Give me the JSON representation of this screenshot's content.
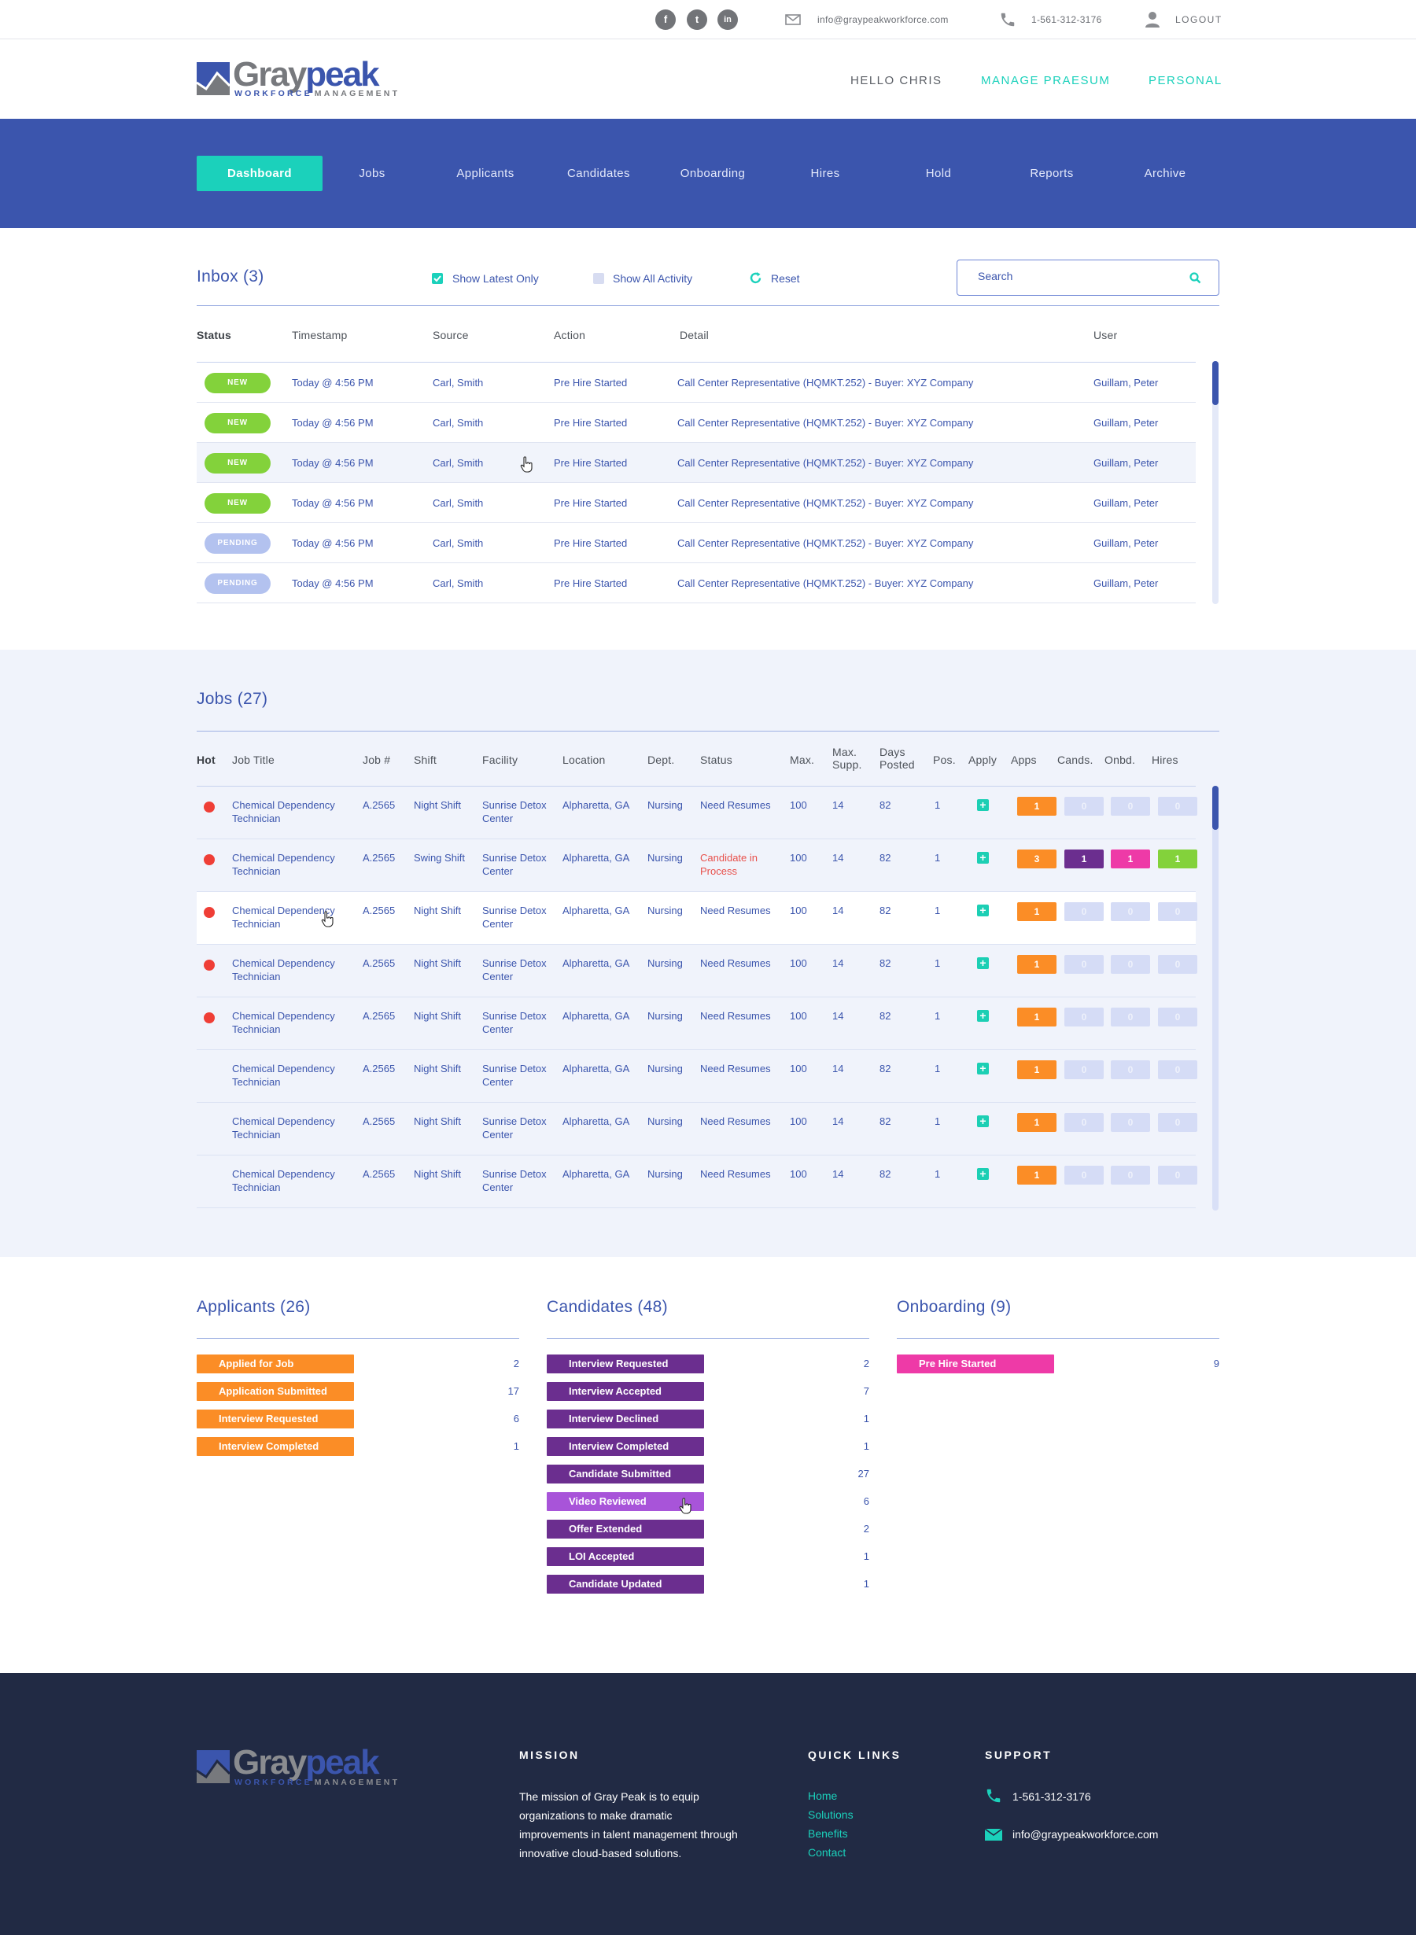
{
  "topbar": {
    "social": [
      "f",
      "t",
      "in"
    ],
    "email": "info@graypeakworkforce.com",
    "phone": "1-561-312-3176",
    "logout": "LOGOUT"
  },
  "logo": {
    "gray": "Gray",
    "peak": "peak",
    "sub1": "WORKFORCE",
    "sub2": "MANAGEMENT"
  },
  "header": {
    "hello": "HELLO CHRIS",
    "manage": "MANAGE PRAESUM",
    "personal": "PERSONAL"
  },
  "nav": [
    "Dashboard",
    "Jobs",
    "Applicants",
    "Candidates",
    "Onboarding",
    "Hires",
    "Hold",
    "Reports",
    "Archive"
  ],
  "colors": {
    "brand": "#3b55ad",
    "accent": "#1bd1bb",
    "orange": "#fb8d26",
    "purple": "#6b2e8f",
    "pink": "#ee3aa7",
    "green": "#83d23b",
    "footer": "#212a44"
  },
  "inbox": {
    "title": "Inbox (3)",
    "show_latest": "Show Latest Only",
    "show_latest_checked": true,
    "show_all": "Show All Activity",
    "reset": "Reset",
    "search_placeholder": "Search",
    "headers": [
      "Status",
      "Timestamp",
      "Source",
      "Action",
      "Detail",
      "User"
    ],
    "rows": [
      {
        "status": "NEW",
        "timestamp": "Today @ 4:56 PM",
        "source": "Carl, Smith",
        "action": "Pre Hire Started",
        "detail": "Call Center Representative (HQMKT.252) - Buyer: XYZ Company",
        "user": "Guillam, Peter"
      },
      {
        "status": "NEW",
        "timestamp": "Today @ 4:56 PM",
        "source": "Carl, Smith",
        "action": "Pre Hire Started",
        "detail": "Call Center Representative (HQMKT.252) - Buyer: XYZ Company",
        "user": "Guillam, Peter"
      },
      {
        "status": "NEW",
        "timestamp": "Today @ 4:56 PM",
        "source": "Carl, Smith",
        "action": "Pre Hire Started",
        "detail": "Call Center Representative (HQMKT.252) - Buyer: XYZ Company",
        "user": "Guillam, Peter"
      },
      {
        "status": "NEW",
        "timestamp": "Today @ 4:56 PM",
        "source": "Carl, Smith",
        "action": "Pre Hire Started",
        "detail": "Call Center Representative (HQMKT.252) - Buyer: XYZ Company",
        "user": "Guillam, Peter"
      },
      {
        "status": "PENDING",
        "timestamp": "Today @ 4:56 PM",
        "source": "Carl, Smith",
        "action": "Pre Hire Started",
        "detail": "Call Center Representative (HQMKT.252) - Buyer: XYZ Company",
        "user": "Guillam, Peter"
      },
      {
        "status": "PENDING",
        "timestamp": "Today @ 4:56 PM",
        "source": "Carl, Smith",
        "action": "Pre Hire Started",
        "detail": "Call Center Representative (HQMKT.252) - Buyer: XYZ Company",
        "user": "Guillam, Peter"
      }
    ]
  },
  "jobs": {
    "title": "Jobs (27)",
    "headers": {
      "hot": "Hot",
      "title": "Job Title",
      "num": "Job #",
      "shift": "Shift",
      "facility": "Facility",
      "location": "Location",
      "dept": "Dept.",
      "status": "Status",
      "max": "Max.",
      "max_supp_1": "Max.",
      "max_supp_2": "Supp.",
      "days_1": "Days",
      "days_2": "Posted",
      "pos": "Pos.",
      "apply": "Apply",
      "apps": "Apps",
      "cands": "Cands.",
      "onbd": "Onbd.",
      "hires": "Hires"
    },
    "rows": [
      {
        "hot": true,
        "title1": "Chemical Dependency",
        "title2": "Technician",
        "num": "A.2565",
        "shift": "Night Shift",
        "fac1": "Sunrise Detox",
        "fac2": "Center",
        "location": "Alpharetta, GA",
        "dept": "Nursing",
        "status1": "Need Resumes",
        "status2": "",
        "max": "100",
        "supp": "14",
        "days": "82",
        "pos": "1",
        "apps": "1",
        "cands": "0",
        "onbd": "0",
        "hires": "0"
      },
      {
        "hot": true,
        "title1": "Chemical Dependency",
        "title2": "Technician",
        "num": "A.2565",
        "shift": "Swing Shift",
        "fac1": "Sunrise Detox",
        "fac2": "Center",
        "location": "Alpharetta, GA",
        "dept": "Nursing",
        "status1": "Candidate in",
        "status2": "Process",
        "max": "100",
        "supp": "14",
        "days": "82",
        "pos": "1",
        "apps": "3",
        "cands": "1",
        "onbd": "1",
        "hires": "1"
      },
      {
        "hot": true,
        "title1": "Chemical Dependency",
        "title2": "Technician",
        "num": "A.2565",
        "shift": "Night Shift",
        "fac1": "Sunrise Detox",
        "fac2": "Center",
        "location": "Alpharetta, GA",
        "dept": "Nursing",
        "status1": "Need Resumes",
        "status2": "",
        "max": "100",
        "supp": "14",
        "days": "82",
        "pos": "1",
        "apps": "1",
        "cands": "0",
        "onbd": "0",
        "hires": "0"
      },
      {
        "hot": true,
        "title1": "Chemical Dependency",
        "title2": "Technician",
        "num": "A.2565",
        "shift": "Night Shift",
        "fac1": "Sunrise Detox",
        "fac2": "Center",
        "location": "Alpharetta, GA",
        "dept": "Nursing",
        "status1": "Need Resumes",
        "status2": "",
        "max": "100",
        "supp": "14",
        "days": "82",
        "pos": "1",
        "apps": "1",
        "cands": "0",
        "onbd": "0",
        "hires": "0"
      },
      {
        "hot": true,
        "title1": "Chemical Dependency",
        "title2": "Technician",
        "num": "A.2565",
        "shift": "Night Shift",
        "fac1": "Sunrise Detox",
        "fac2": "Center",
        "location": "Alpharetta, GA",
        "dept": "Nursing",
        "status1": "Need Resumes",
        "status2": "",
        "max": "100",
        "supp": "14",
        "days": "82",
        "pos": "1",
        "apps": "1",
        "cands": "0",
        "onbd": "0",
        "hires": "0"
      },
      {
        "hot": false,
        "title1": "Chemical Dependency",
        "title2": "Technician",
        "num": "A.2565",
        "shift": "Night Shift",
        "fac1": "Sunrise Detox",
        "fac2": "Center",
        "location": "Alpharetta, GA",
        "dept": "Nursing",
        "status1": "Need Resumes",
        "status2": "",
        "max": "100",
        "supp": "14",
        "days": "82",
        "pos": "1",
        "apps": "1",
        "cands": "0",
        "onbd": "0",
        "hires": "0"
      },
      {
        "hot": false,
        "title1": "Chemical Dependency",
        "title2": "Technician",
        "num": "A.2565",
        "shift": "Night Shift",
        "fac1": "Sunrise Detox",
        "fac2": "Center",
        "location": "Alpharetta, GA",
        "dept": "Nursing",
        "status1": "Need Resumes",
        "status2": "",
        "max": "100",
        "supp": "14",
        "days": "82",
        "pos": "1",
        "apps": "1",
        "cands": "0",
        "onbd": "0",
        "hires": "0"
      },
      {
        "hot": false,
        "title1": "Chemical Dependency",
        "title2": "Technician",
        "num": "A.2565",
        "shift": "Night Shift",
        "fac1": "Sunrise Detox",
        "fac2": "Center",
        "location": "Alpharetta, GA",
        "dept": "Nursing",
        "status1": "Need Resumes",
        "status2": "",
        "max": "100",
        "supp": "14",
        "days": "82",
        "pos": "1",
        "apps": "1",
        "cands": "0",
        "onbd": "0",
        "hires": "0"
      }
    ]
  },
  "applicants": {
    "title": "Applicants (26)",
    "items": [
      {
        "label": "Applied for Job",
        "count": "2"
      },
      {
        "label": "Application Submitted",
        "count": "17"
      },
      {
        "label": "Interview Requested",
        "count": "6"
      },
      {
        "label": "Interview Completed",
        "count": "1"
      }
    ]
  },
  "candidates": {
    "title": "Candidates (48)",
    "items": [
      {
        "label": "Interview Requested",
        "count": "2"
      },
      {
        "label": "Interview Accepted",
        "count": "7"
      },
      {
        "label": "Interview Declined",
        "count": "1"
      },
      {
        "label": "Interview Completed",
        "count": "1"
      },
      {
        "label": "Candidate Submitted",
        "count": "27"
      },
      {
        "label": "Video Reviewed",
        "count": "6"
      },
      {
        "label": "Offer Extended",
        "count": "2"
      },
      {
        "label": "LOI Accepted",
        "count": "1"
      },
      {
        "label": "Candidate Updated",
        "count": "1"
      }
    ]
  },
  "onboarding": {
    "title": "Onboarding (9)",
    "items": [
      {
        "label": "Pre Hire Started",
        "count": "9"
      }
    ]
  },
  "footer": {
    "mission_head": "MISSION",
    "mission_text": [
      "The mission of Gray Peak is to equip",
      "organizations to make dramatic",
      "improvements in talent management through",
      "innovative cloud-based solutions."
    ],
    "links_head": "QUICK LINKS",
    "links": [
      "Home",
      "Solutions",
      "Benefits",
      "Contact"
    ],
    "support_head": "SUPPORT",
    "phone": "1-561-312-3176",
    "email": "info@graypeakworkforce.com"
  }
}
